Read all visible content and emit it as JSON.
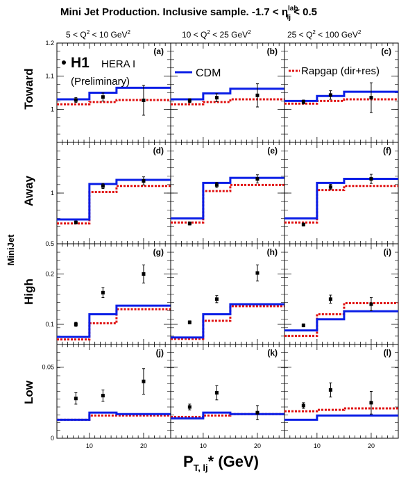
{
  "figure": {
    "title_main": "Mini Jet Production.  Inclusive sample.  -1.7 < η",
    "title_sup": "lab",
    "title_sub": "lj",
    "title_tail": " < 0.5",
    "q2_bins": [
      {
        "pre": "5 < Q",
        "sup": "2",
        "post": " < 10 GeV",
        "sup2": "2"
      },
      {
        "pre": "10 < Q",
        "sup": "2",
        "post": " < 25 GeV",
        "sup2": "2"
      },
      {
        "pre": "25 < Q",
        "sup": "2",
        "post": " < 100 GeV",
        "sup2": "2"
      }
    ],
    "row_labels": [
      "Toward",
      "Away",
      "High",
      "Low"
    ],
    "xlabel_main": "P",
    "xlabel_sub": "T, lj",
    "xlabel_tail": "* (GeV)",
    "ylabel_fragment": "MiniJet",
    "legend": {
      "h1": "H1",
      "hera": "HERA I",
      "prelim": "(Preliminary)",
      "cdm": "CDM",
      "rapgap": "Rapgap (dir+res)"
    },
    "colors": {
      "cdm": "#0a1ee6",
      "rapgap": "#e01010",
      "data": "#000000"
    }
  },
  "chart_data": {
    "type": "histogram-grid",
    "x_bin_edges": [
      5,
      10,
      15,
      25
    ],
    "x_points": [
      7.5,
      12.5,
      20
    ],
    "xlim": [
      4,
      25
    ],
    "xticks": [
      10,
      20
    ],
    "rows": [
      {
        "label": "Toward",
        "ylim": [
          0.9,
          1.2
        ],
        "yticks": [
          1,
          1.1,
          1.2
        ],
        "ytick_labels": [
          "1",
          "1.1",
          "1.2"
        ],
        "panels": [
          {
            "tag": "(a)",
            "data": [
              1.028,
              1.037,
              1.027
            ],
            "err": [
              0.007,
              0.012,
              0.045
            ],
            "cdm": [
              1.03,
              1.05,
              1.065
            ],
            "rapgap": [
              1.015,
              1.022,
              1.028
            ]
          },
          {
            "tag": "(b)",
            "data": [
              1.026,
              1.035,
              1.042
            ],
            "err": [
              0.006,
              0.012,
              0.035
            ],
            "cdm": [
              1.03,
              1.048,
              1.062
            ],
            "rapgap": [
              1.015,
              1.022,
              1.03
            ]
          },
          {
            "tag": "(c)",
            "data": [
              1.022,
              1.043,
              1.035
            ],
            "err": [
              0.006,
              0.013,
              0.045
            ],
            "cdm": [
              1.025,
              1.04,
              1.053
            ],
            "rapgap": [
              1.017,
              1.025,
              1.03
            ]
          }
        ]
      },
      {
        "label": "Away",
        "ylim": [
          0.5,
          1.5
        ],
        "yticks": [
          0.5,
          1
        ],
        "ytick_labels": [
          "0.5",
          "1"
        ],
        "panels": [
          {
            "tag": "(d)",
            "data": [
              0.71,
              1.07,
              1.12
            ],
            "err": [
              0.015,
              0.025,
              0.04
            ],
            "cdm": [
              0.74,
              1.09,
              1.13
            ],
            "rapgap": [
              0.7,
              1.01,
              1.07
            ]
          },
          {
            "tag": "(e)",
            "data": [
              0.7,
              1.08,
              1.14
            ],
            "err": [
              0.015,
              0.025,
              0.04
            ],
            "cdm": [
              0.75,
              1.1,
              1.15
            ],
            "rapgap": [
              0.71,
              1.02,
              1.08
            ]
          },
          {
            "tag": "(f)",
            "data": [
              0.69,
              1.06,
              1.14
            ],
            "err": [
              0.015,
              0.025,
              0.045
            ],
            "cdm": [
              0.75,
              1.1,
              1.14
            ],
            "rapgap": [
              0.71,
              1.03,
              1.07
            ]
          }
        ]
      },
      {
        "label": "High",
        "ylim": [
          0.06,
          0.26
        ],
        "yticks": [
          0.1,
          0.2
        ],
        "ytick_labels": [
          "0.1",
          "0.2"
        ],
        "panels": [
          {
            "tag": "(g)",
            "data": [
              0.1,
              0.163,
              0.2
            ],
            "err": [
              0.004,
              0.01,
              0.018
            ],
            "cdm": [
              0.075,
              0.12,
              0.137
            ],
            "rapgap": [
              0.07,
              0.102,
              0.13
            ]
          },
          {
            "tag": "(h)",
            "data": [
              0.104,
              0.15,
              0.202
            ],
            "err": [
              0.003,
              0.007,
              0.016
            ],
            "cdm": [
              0.074,
              0.12,
              0.14
            ],
            "rapgap": [
              0.071,
              0.107,
              0.136
            ]
          },
          {
            "tag": "(i)",
            "data": [
              0.098,
              0.15,
              0.14
            ],
            "err": [
              0.003,
              0.008,
              0.013
            ],
            "cdm": [
              0.088,
              0.11,
              0.126
            ],
            "rapgap": [
              0.077,
              0.12,
              0.142
            ]
          }
        ]
      },
      {
        "label": "Low",
        "ylim": [
          0,
          0.066
        ],
        "yticks": [
          0,
          0.05
        ],
        "ytick_labels": [
          "0",
          "0.05"
        ],
        "panels": [
          {
            "tag": "(j)",
            "data": [
              0.028,
              0.03,
              0.04
            ],
            "err": [
              0.004,
              0.004,
              0.009
            ],
            "cdm": [
              0.013,
              0.018,
              0.017
            ],
            "rapgap": [
              0.013,
              0.016,
              0.016
            ]
          },
          {
            "tag": "(k)",
            "data": [
              0.022,
              0.032,
              0.018
            ],
            "err": [
              0.002,
              0.005,
              0.005
            ],
            "cdm": [
              0.014,
              0.018,
              0.017
            ],
            "rapgap": [
              0.015,
              0.016,
              0.017
            ]
          },
          {
            "tag": "(l)",
            "data": [
              0.023,
              0.034,
              0.025
            ],
            "err": [
              0.002,
              0.005,
              0.008
            ],
            "cdm": [
              0.013,
              0.016,
              0.016
            ],
            "rapgap": [
              0.019,
              0.02,
              0.021
            ]
          }
        ]
      }
    ]
  }
}
